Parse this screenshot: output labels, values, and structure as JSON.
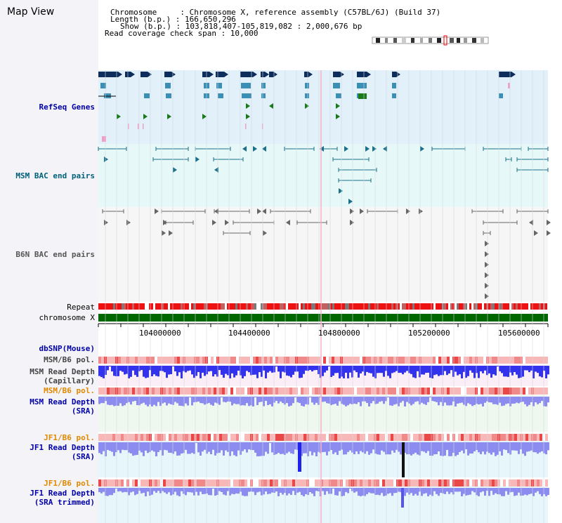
{
  "title": "Map View",
  "header": {
    "chromosome_line": "Chromosome     : Chromosome X, reference assembly (C57BL/6J) (Build 37)",
    "length_line": "Length (b.p.) : 166,650,296",
    "show_line": "Show (b.p.) : 103,818,407-105,819,082 : 2,000,676 bp",
    "coverage_line": "Read coverage check span : 10,000"
  },
  "tracks": {
    "refseq": "RefSeq Genes",
    "msm_bac": "MSM BAC end pairs",
    "b6n_bac": "B6N BAC end pairs",
    "repeat": "Repeat",
    "chromosome": "chromosome X",
    "dbsnp": "dbSNP(Mouse)",
    "msm_b6_pol_1": "MSM/B6 pol.",
    "msm_read_depth_cap_1": "MSM Read Depth",
    "msm_read_depth_cap_2": "(Capillary)",
    "msm_b6_pol_2": "MSM/B6 pol.",
    "msm_read_depth_sra_1": "MSM Read Depth",
    "msm_read_depth_sra_2": "(SRA)",
    "jf1_b6_pol_1": "JF1/B6 pol.",
    "jf1_read_depth_sra_1": "JF1 Read Depth",
    "jf1_read_depth_sra_2": "(SRA)",
    "jf1_b6_pol_2": "JF1/B6 pol.",
    "jf1_read_depth_trim_1": "JF1 Read Depth",
    "jf1_read_depth_trim_2": "(SRA trimmed)"
  },
  "axis": {
    "ticks": [
      "104000000",
      "104400000",
      "104800000",
      "105200000",
      "105600000"
    ]
  },
  "colors": {
    "refseq_bg": "#e2f0fa",
    "msm_bac_bg": "#e6f8f8",
    "b6n_bac_bg": "#f6f6f6",
    "gene_dark": "#0d2e5c",
    "gene_mid": "#3b8fb4",
    "gene_green": "#1a7a1a",
    "bac_teal": "#1a6f8a",
    "bac_gray": "#666666",
    "chromosome_bar": "#006600",
    "repeat_red": "#ee1111",
    "depth_blue": "#3333ee",
    "depth_light": "#8c8cf0"
  }
}
